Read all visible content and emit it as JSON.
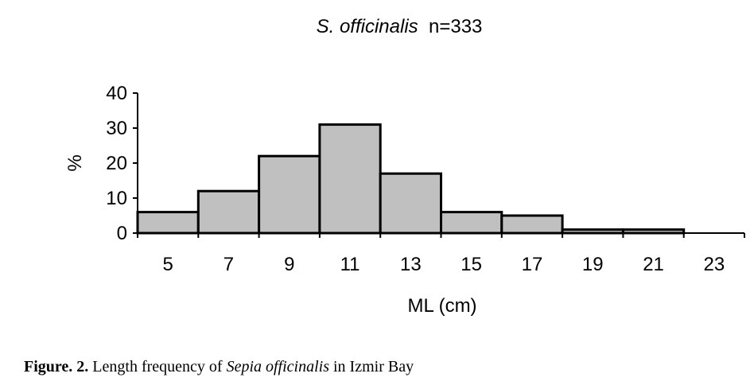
{
  "chart_data": {
    "type": "bar",
    "title_species": "S. officinalis",
    "title_n": "n=333",
    "categories": [
      "5",
      "7",
      "9",
      "11",
      "13",
      "15",
      "17",
      "19",
      "21",
      "23"
    ],
    "values": [
      6,
      12,
      22,
      31,
      17,
      6,
      5,
      1,
      1,
      0
    ],
    "xlabel": "ML (cm)",
    "ylabel": "%",
    "ylim": [
      0,
      40
    ],
    "yticks": [
      0,
      10,
      20,
      30,
      40
    ],
    "grid": false,
    "bar_color": "#c0c0c0",
    "edge_color": "#000000"
  },
  "caption": {
    "prefix": "Figure. 2.",
    "text_before": " Length frequency of ",
    "species": "Sepia officinalis",
    "text_after": " in Izmir Bay"
  }
}
